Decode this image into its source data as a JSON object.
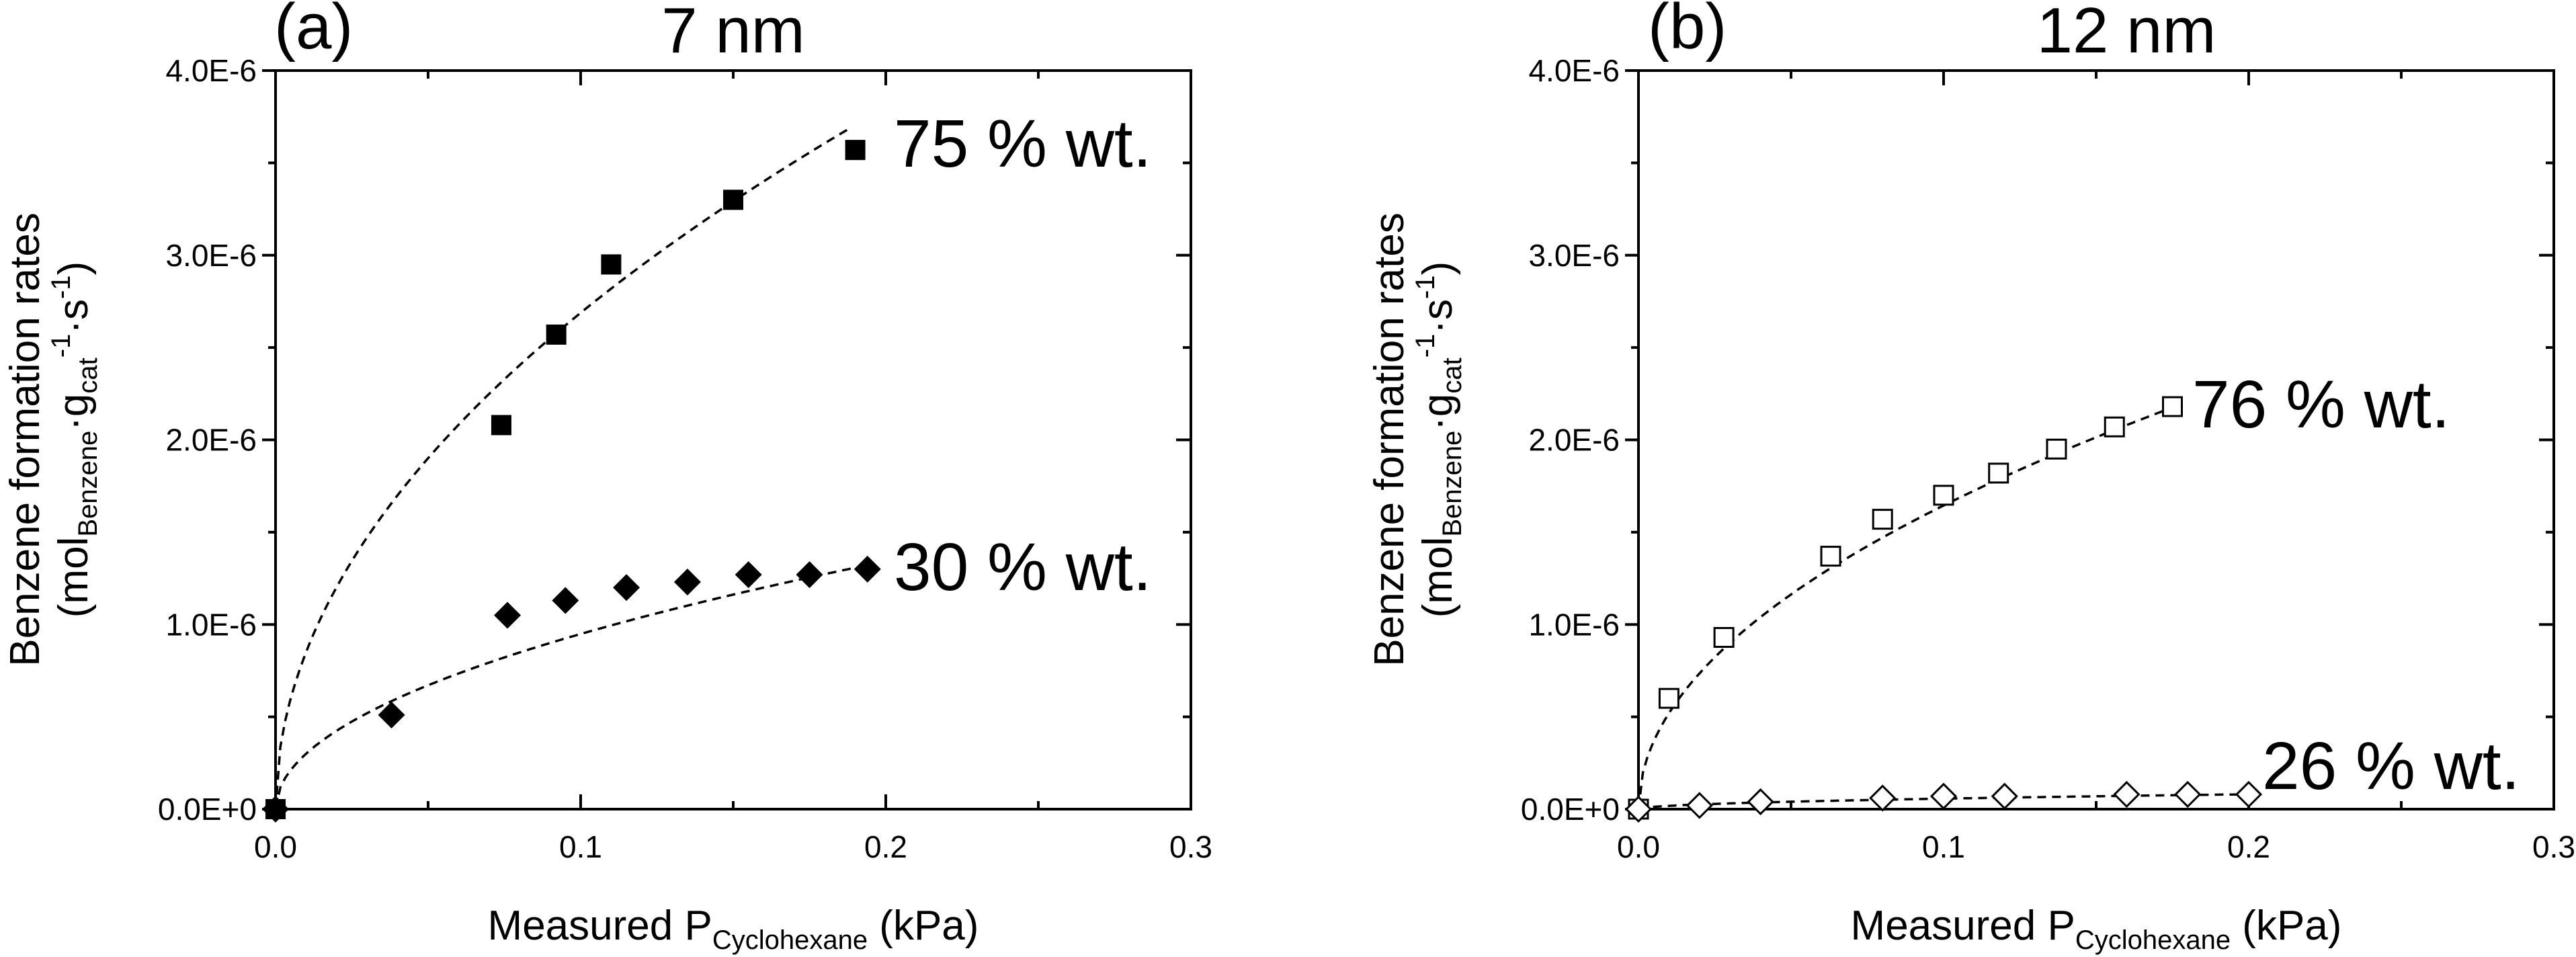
{
  "chart_data": [
    {
      "type": "scatter",
      "panel_label": "(a)",
      "title": "7 nm",
      "xlabel": {
        "main": "Measured P",
        "sub": "Cyclohexane",
        "unit": " (kPa)"
      },
      "ylabel": {
        "line1": "Benzene formation rates",
        "line2": {
          "open": "(mol",
          "sub1": "Benzene",
          "dot1": "·g",
          "sub2": "cat",
          "sup1": "-1",
          "dot2": "·s",
          "sup2": "-1",
          "close": ")"
        }
      },
      "xlim": [
        0,
        0.3
      ],
      "ylim": [
        0,
        4e-06
      ],
      "xticks": [
        0,
        0.1,
        0.2,
        0.3
      ],
      "xtick_labels": [
        "0.0",
        "0.1",
        "0.2",
        "0.3"
      ],
      "yticks": [
        0,
        1e-06,
        2e-06,
        3e-06,
        4e-06
      ],
      "ytick_labels": [
        "0.0E+0",
        "1.0E-6",
        "2.0E-6",
        "3.0E-6",
        "4.0E-6"
      ],
      "series": [
        {
          "name": "75 % wt.",
          "marker": "square-filled",
          "x": [
            0.0,
            0.074,
            0.092,
            0.11,
            0.15,
            0.19
          ],
          "y": [
            0.0,
            2.08e-06,
            2.57e-06,
            2.95e-06,
            3.3e-06,
            3.57e-06
          ],
          "fit": {
            "a": 8.5e-06,
            "p": 0.5,
            "xmax": 0.188
          }
        },
        {
          "name": "30 % wt.",
          "marker": "diamond-filled",
          "x": [
            0.0,
            0.038,
            0.076,
            0.095,
            0.115,
            0.135,
            0.155,
            0.175,
            0.194
          ],
          "y": [
            0.0,
            5.1e-07,
            1.05e-06,
            1.13e-06,
            1.2e-06,
            1.23e-06,
            1.27e-06,
            1.27e-06,
            1.3e-06
          ],
          "fit": {
            "a": 3e-06,
            "p": 0.5,
            "xmax": 0.196
          }
        }
      ]
    },
    {
      "type": "scatter",
      "panel_label": "(b)",
      "title": "12 nm",
      "xlabel": {
        "main": "Measured P",
        "sub": "Cyclohexane",
        "unit": " (kPa)"
      },
      "ylabel": {
        "line1": "Benzene formation rates",
        "line2": {
          "open": "(mol",
          "sub1": "Benzene",
          "dot1": "·g",
          "sub2": "cat",
          "sup1": "-1",
          "dot2": "·s",
          "sup2": "-1",
          "close": ")"
        }
      },
      "xlim": [
        0,
        0.3
      ],
      "ylim": [
        0,
        4e-06
      ],
      "xticks": [
        0,
        0.1,
        0.2,
        0.3
      ],
      "xtick_labels": [
        "0.0",
        "0.1",
        "0.2",
        "0.3"
      ],
      "yticks": [
        0,
        1e-06,
        2e-06,
        3e-06,
        4e-06
      ],
      "ytick_labels": [
        "0.0E+0",
        "1.0E-6",
        "2.0E-6",
        "3.0E-6",
        "4.0E-6"
      ],
      "series": [
        {
          "name": "76 % wt.",
          "marker": "square-open",
          "x": [
            0.0,
            0.01,
            0.028,
            0.063,
            0.08,
            0.1,
            0.118,
            0.137,
            0.156,
            0.175
          ],
          "y": [
            0.0,
            6e-07,
            9.3e-07,
            1.37e-06,
            1.57e-06,
            1.7e-06,
            1.82e-06,
            1.95e-06,
            2.07e-06,
            2.18e-06
          ],
          "fit": {
            "a": 5.2e-06,
            "p": 0.5,
            "xmax": 0.175
          }
        },
        {
          "name": "26 % wt.",
          "marker": "diamond-open",
          "x": [
            0.0,
            0.02,
            0.04,
            0.08,
            0.1,
            0.12,
            0.16,
            0.18,
            0.2
          ],
          "y": [
            0.0,
            2e-08,
            4e-08,
            6e-08,
            7e-08,
            7e-08,
            8e-08,
            8e-08,
            8e-08
          ],
          "fit": {
            "a": 1.8e-07,
            "p": 0.5,
            "xmax": 0.2
          }
        }
      ]
    }
  ]
}
